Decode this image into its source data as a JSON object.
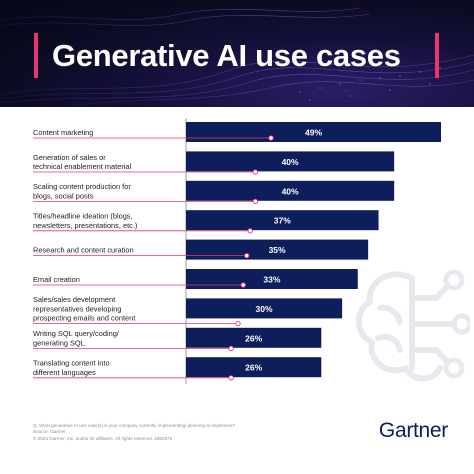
{
  "header": {
    "title": "Generative AI use cases"
  },
  "chart_data": {
    "type": "bar",
    "orientation": "horizontal",
    "categories": [
      [
        "Content marketing"
      ],
      [
        "Generation of sales or",
        "technical enablement material"
      ],
      [
        "Scaling content production for",
        "blogs, social posts"
      ],
      [
        "Titles/headline ideation (blogs,",
        "newsletters, presentations, etc.)"
      ],
      [
        "Research and content curation"
      ],
      [
        "Email creation"
      ],
      [
        "Sales/sales development",
        "representatives developing",
        "prospecting emails and content"
      ],
      [
        "Writing SQL query/coding/",
        "generating SQL"
      ],
      [
        "Translating content into",
        "different languages"
      ]
    ],
    "values": [
      49,
      40,
      40,
      37,
      35,
      33,
      30,
      26,
      26
    ],
    "value_labels": [
      "49%",
      "40%",
      "40%",
      "37%",
      "35%",
      "33%",
      "30%",
      "26%",
      "26%"
    ],
    "xlim": [
      0,
      50
    ],
    "grid": false,
    "bar_color": "#0e1e5b",
    "connector_color": "#e8366f"
  },
  "footer": {
    "lines": [
      "Q. What generative AI use case(s) is your company currently implementing/ planning to implement?",
      "Source: Gartner",
      "© 2024 Gartner, Inc. and/or its affiliates. All rights reserved. 2862878"
    ],
    "logo": "Gartner"
  },
  "colors": {
    "accent": "#e8366f",
    "navy": "#0e1e5b",
    "banner_bg": "#0a0a1f"
  }
}
